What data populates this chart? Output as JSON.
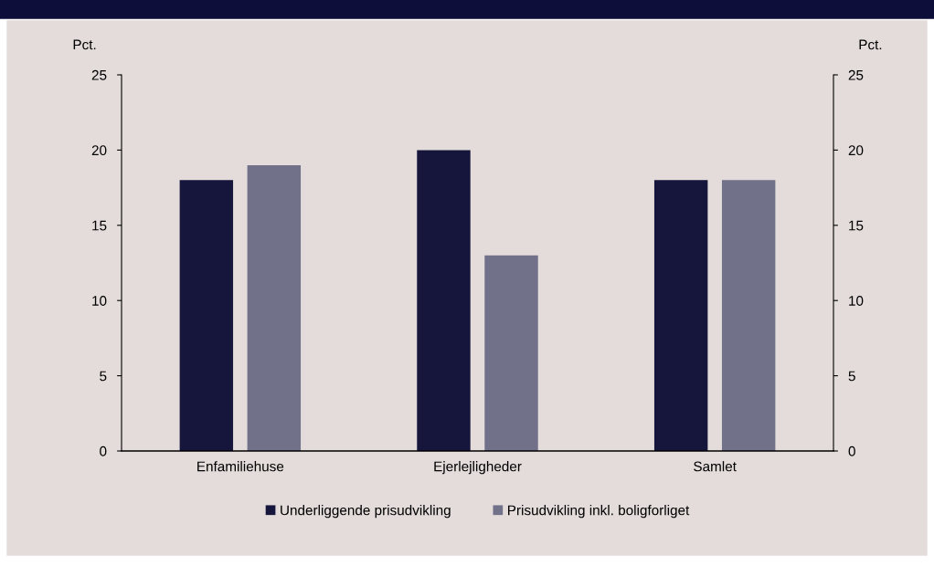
{
  "chart_data": {
    "type": "bar",
    "ylabel": "Pct.",
    "y2label": "Pct.",
    "categories": [
      "Enfamiliehuse",
      "Ejerlejligheder",
      "Samlet"
    ],
    "series": [
      {
        "name": "Underliggende prisudvikling",
        "color": "#16163c",
        "values": [
          18,
          20,
          18
        ]
      },
      {
        "name": "Prisudvikling inkl. boligforliget",
        "color": "#717189",
        "values": [
          19,
          13,
          18
        ]
      }
    ],
    "ylim": [
      0,
      25
    ],
    "yticks": [
      0,
      5,
      10,
      15,
      20,
      25
    ],
    "y2lim": [
      0,
      25
    ],
    "y2ticks": [
      0,
      5,
      10,
      15,
      20,
      25
    ],
    "grid": false,
    "legend": "bottom"
  }
}
